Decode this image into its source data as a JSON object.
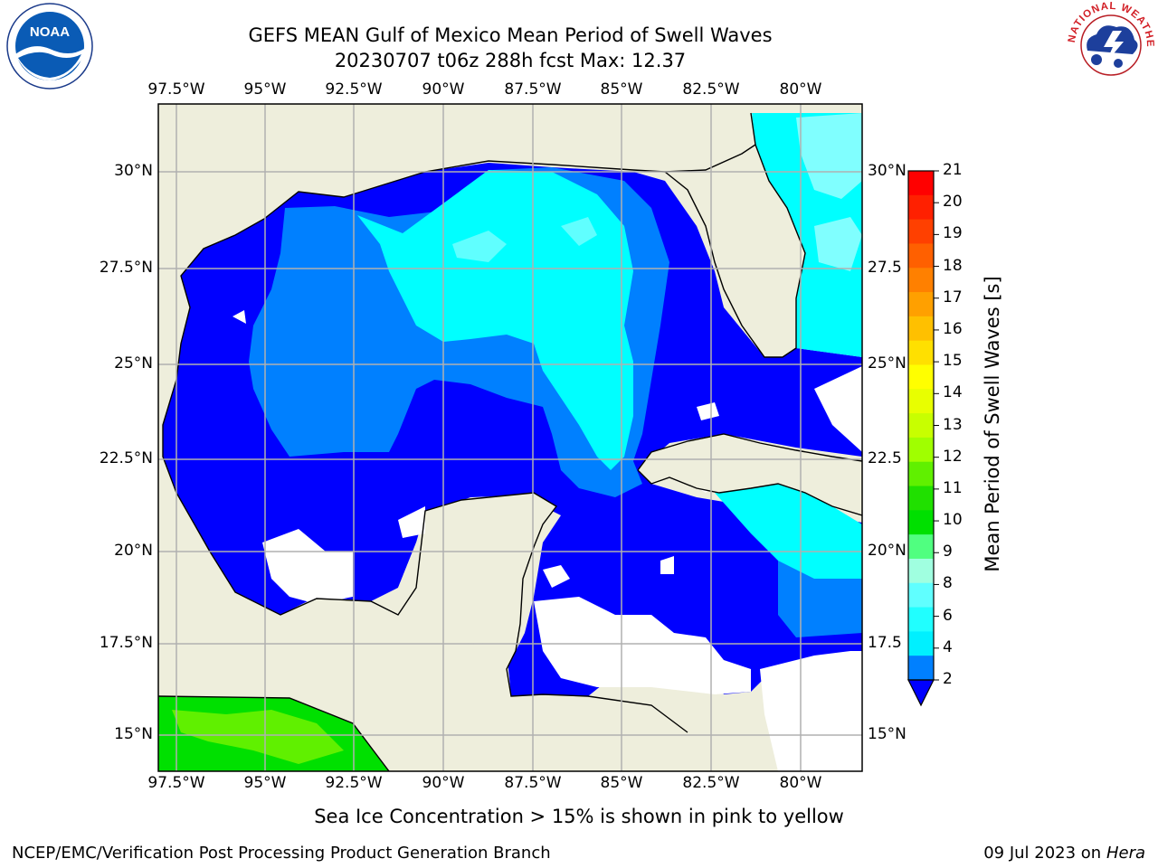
{
  "title_line1": "GEFS MEAN Gulf of Mexico Mean Period of Swell Waves",
  "title_line2": "20230707 t06z 288h fcst   Max: 12.37",
  "lon_ticks": [
    "97.5°W",
    "95°W",
    "92.5°W",
    "90°W",
    "87.5°W",
    "85°W",
    "82.5°W",
    "80°W"
  ],
  "lat_ticks_left": [
    "30°N",
    "27.5°N",
    "25°N",
    "22.5°N",
    "20°N",
    "17.5°N",
    "15°N"
  ],
  "lat_ticks_right": [
    "30°N",
    "27.5",
    "25°N",
    "22.5",
    "20°N",
    "17.5",
    "15°N"
  ],
  "colorbar": {
    "label": "Mean Period of Swell Waves [s]",
    "ticks": [
      "21",
      "20",
      "19",
      "18",
      "17",
      "16",
      "15",
      "14",
      "13",
      "12",
      "11",
      "10",
      "9",
      "8",
      "6",
      "4",
      "2"
    ],
    "colors": [
      "#ff0000",
      "#ff2000",
      "#ff4000",
      "#ff6000",
      "#ff8000",
      "#ffa000",
      "#ffc000",
      "#ffe000",
      "#ffff00",
      "#e8ff00",
      "#c8ff00",
      "#a0ff00",
      "#60f000",
      "#20e000",
      "#00e000",
      "#50ff80",
      "#a0ffe0",
      "#60ffff",
      "#20ffff",
      "#00f0ff",
      "#0080ff",
      "#0000ff"
    ]
  },
  "ice_note": "Sea Ice Concentration > 15% is shown in pink to yellow",
  "footer_left": "NCEP/EMC/Verification Post Processing Product Generation Branch",
  "footer_date": "09 Jul 2023 on ",
  "footer_machine": "Hera",
  "logos": {
    "noaa_text": "NOAA",
    "nws_text": "NATIONAL WEATHER SERVICE"
  },
  "colors": {
    "land": "#eeeedc",
    "deep_blue": "#0000ff",
    "mid_blue": "#0080ff",
    "cyan": "#00ffff",
    "light_cyan": "#80ffff",
    "green": "#00e000",
    "lime": "#60f000",
    "grid": "#b0b0b0"
  }
}
